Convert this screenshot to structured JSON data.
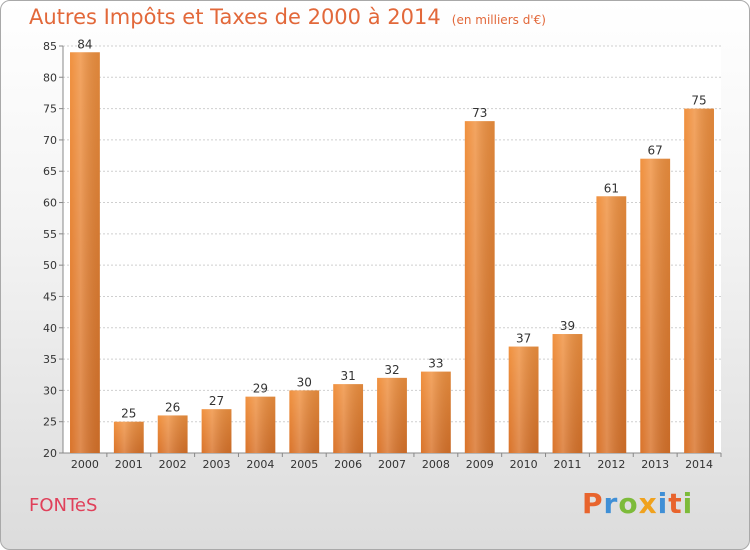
{
  "chart_data": {
    "type": "bar",
    "title": "Autres Impôts et Taxes de 2000 à 2014",
    "subtitle": "(en milliers d'€)",
    "categories": [
      "2000",
      "2001",
      "2002",
      "2003",
      "2004",
      "2005",
      "2006",
      "2007",
      "2008",
      "2009",
      "2010",
      "2011",
      "2012",
      "2013",
      "2014"
    ],
    "values": [
      84,
      25,
      26,
      27,
      29,
      30,
      31,
      32,
      33,
      73,
      37,
      39,
      61,
      67,
      75
    ],
    "ylim": [
      20,
      85
    ],
    "yticks": [
      20,
      25,
      30,
      35,
      40,
      45,
      50,
      55,
      60,
      65,
      70,
      75,
      80,
      85
    ],
    "grid": true,
    "bar_color": "#f0913f",
    "bar_color_dark": "#d9732a"
  },
  "footer": {
    "commune": "FONTeS",
    "logo_letters": [
      "P",
      "r",
      "o",
      "x",
      "i",
      "t",
      "i"
    ],
    "logo_colors": [
      "#e8642d",
      "#3f8fd6",
      "#7dbb3a",
      "#f0a21e",
      "#3f8fd6",
      "#e8642d",
      "#7dbb3a"
    ]
  }
}
